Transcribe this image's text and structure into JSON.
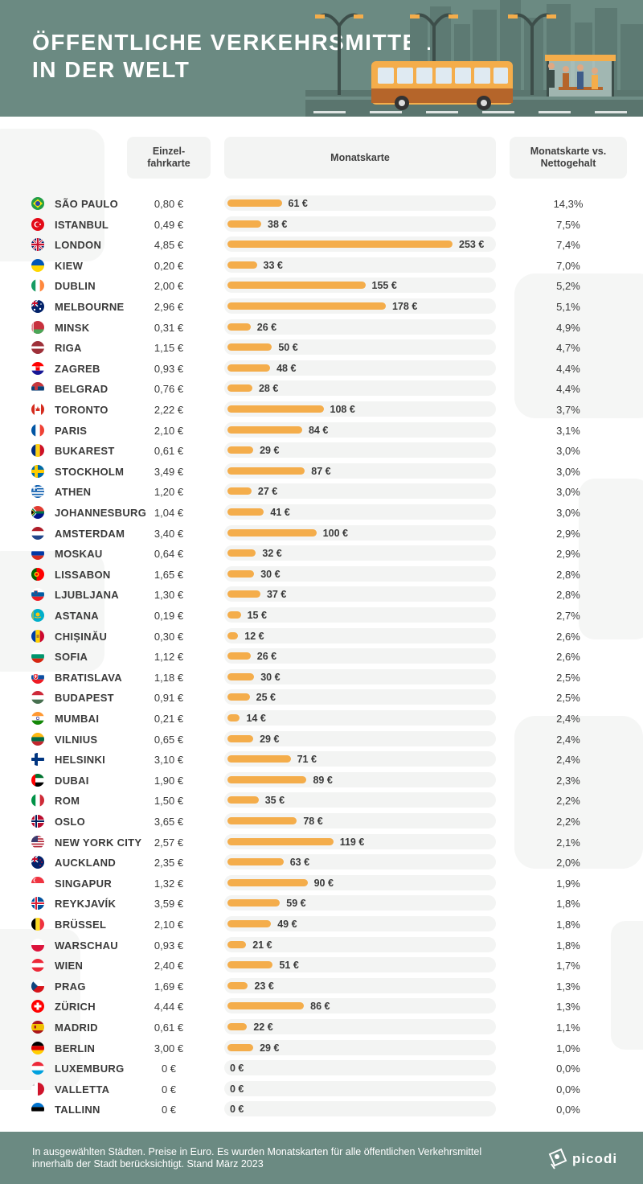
{
  "header": {
    "title_line1": "ÖFFENTLICHE VERKEHRSMITTEL",
    "title_line2": "IN DER WELT"
  },
  "columns": {
    "single": "Einzel- fahrkarte",
    "monthly": "Monatskarte",
    "ratio": "Monatskarte vs. Nettogehalt"
  },
  "footer": {
    "note": "In ausgewählten Städten. Preise in Euro. Es wurden Monatskarten für alle öffentlichen Verkehrsmittel innerhalb der Stadt berücksichtigt. Stand März 2023",
    "brand": "picodi"
  },
  "colors": {
    "header_bg": "#6b8a82",
    "bar": "#f4ad4b",
    "track": "#f3f4f3"
  },
  "chart_data": {
    "type": "bar",
    "orientation": "horizontal",
    "max_value": 253,
    "rows": [
      {
        "city": "SÃO PAULO",
        "flag": "br",
        "single": "0,80 €",
        "monthly": 61,
        "monthly_label": "61 €",
        "ratio": "14,3%"
      },
      {
        "city": "ISTANBUL",
        "flag": "tr",
        "single": "0,49 €",
        "monthly": 38,
        "monthly_label": "38 €",
        "ratio": "7,5%"
      },
      {
        "city": "LONDON",
        "flag": "gb",
        "single": "4,85 €",
        "monthly": 253,
        "monthly_label": "253 €",
        "ratio": "7,4%"
      },
      {
        "city": "KIEW",
        "flag": "ua",
        "single": "0,20 €",
        "monthly": 33,
        "monthly_label": "33 €",
        "ratio": "7,0%"
      },
      {
        "city": "DUBLIN",
        "flag": "ie",
        "single": "2,00 €",
        "monthly": 155,
        "monthly_label": "155 €",
        "ratio": "5,2%"
      },
      {
        "city": "MELBOURNE",
        "flag": "au",
        "single": "2,96 €",
        "monthly": 178,
        "monthly_label": "178 €",
        "ratio": "5,1%"
      },
      {
        "city": "MINSK",
        "flag": "by",
        "single": "0,31 €",
        "monthly": 26,
        "monthly_label": "26 €",
        "ratio": "4,9%"
      },
      {
        "city": "RIGA",
        "flag": "lv",
        "single": "1,15 €",
        "monthly": 50,
        "monthly_label": "50 €",
        "ratio": "4,7%"
      },
      {
        "city": "ZAGREB",
        "flag": "hr",
        "single": "0,93 €",
        "monthly": 48,
        "monthly_label": "48 €",
        "ratio": "4,4%"
      },
      {
        "city": "BELGRAD",
        "flag": "rs",
        "single": "0,76 €",
        "monthly": 28,
        "monthly_label": "28 €",
        "ratio": "4,4%"
      },
      {
        "city": "TORONTO",
        "flag": "ca",
        "single": "2,22 €",
        "monthly": 108,
        "monthly_label": "108 €",
        "ratio": "3,7%"
      },
      {
        "city": "PARIS",
        "flag": "fr",
        "single": "2,10 €",
        "monthly": 84,
        "monthly_label": "84 €",
        "ratio": "3,1%"
      },
      {
        "city": "BUKAREST",
        "flag": "ro",
        "single": "0,61 €",
        "monthly": 29,
        "monthly_label": "29 €",
        "ratio": "3,0%"
      },
      {
        "city": "STOCKHOLM",
        "flag": "se",
        "single": "3,49 €",
        "monthly": 87,
        "monthly_label": "87 €",
        "ratio": "3,0%"
      },
      {
        "city": "ATHEN",
        "flag": "gr",
        "single": "1,20 €",
        "monthly": 27,
        "monthly_label": "27 €",
        "ratio": "3,0%"
      },
      {
        "city": "JOHANNESBURG",
        "flag": "za",
        "single": "1,04 €",
        "monthly": 41,
        "monthly_label": "41 €",
        "ratio": "3,0%"
      },
      {
        "city": "AMSTERDAM",
        "flag": "nl",
        "single": "3,40 €",
        "monthly": 100,
        "monthly_label": "100 €",
        "ratio": "2,9%"
      },
      {
        "city": "MOSKAU",
        "flag": "ru",
        "single": "0,64 €",
        "monthly": 32,
        "monthly_label": "32 €",
        "ratio": "2,9%"
      },
      {
        "city": "LISSABON",
        "flag": "pt",
        "single": "1,65 €",
        "monthly": 30,
        "monthly_label": "30 €",
        "ratio": "2,8%"
      },
      {
        "city": "LJUBLJANA",
        "flag": "si",
        "single": "1,30 €",
        "monthly": 37,
        "monthly_label": "37 €",
        "ratio": "2,8%"
      },
      {
        "city": "ASTANA",
        "flag": "kz",
        "single": "0,19 €",
        "monthly": 15,
        "monthly_label": "15 €",
        "ratio": "2,7%"
      },
      {
        "city": "CHIȘINĂU",
        "flag": "md",
        "single": "0,30 €",
        "monthly": 12,
        "monthly_label": "12 €",
        "ratio": "2,6%"
      },
      {
        "city": "SOFIA",
        "flag": "bg",
        "single": "1,12 €",
        "monthly": 26,
        "monthly_label": "26 €",
        "ratio": "2,6%"
      },
      {
        "city": "BRATISLAVA",
        "flag": "sk",
        "single": "1,18 €",
        "monthly": 30,
        "monthly_label": "30 €",
        "ratio": "2,5%"
      },
      {
        "city": "BUDAPEST",
        "flag": "hu",
        "single": "0,91 €",
        "monthly": 25,
        "monthly_label": "25 €",
        "ratio": "2,5%"
      },
      {
        "city": "MUMBAI",
        "flag": "in",
        "single": "0,21 €",
        "monthly": 14,
        "monthly_label": "14 €",
        "ratio": "2,4%"
      },
      {
        "city": "VILNIUS",
        "flag": "lt",
        "single": "0,65 €",
        "monthly": 29,
        "monthly_label": "29 €",
        "ratio": "2,4%"
      },
      {
        "city": "HELSINKI",
        "flag": "fi",
        "single": "3,10 €",
        "monthly": 71,
        "monthly_label": "71 €",
        "ratio": "2,4%"
      },
      {
        "city": "DUBAI",
        "flag": "ae",
        "single": "1,90 €",
        "monthly": 89,
        "monthly_label": "89 €",
        "ratio": "2,3%"
      },
      {
        "city": "ROM",
        "flag": "it",
        "single": "1,50 €",
        "monthly": 35,
        "monthly_label": "35 €",
        "ratio": "2,2%"
      },
      {
        "city": "OSLO",
        "flag": "no",
        "single": "3,65 €",
        "monthly": 78,
        "monthly_label": "78 €",
        "ratio": "2,2%"
      },
      {
        "city": "NEW YORK CITY",
        "flag": "us",
        "single": "2,57 €",
        "monthly": 119,
        "monthly_label": "119 €",
        "ratio": "2,1%"
      },
      {
        "city": "AUCKLAND",
        "flag": "nz",
        "single": "2,35 €",
        "monthly": 63,
        "monthly_label": "63 €",
        "ratio": "2,0%"
      },
      {
        "city": "SINGAPUR",
        "flag": "sg",
        "single": "1,32 €",
        "monthly": 90,
        "monthly_label": "90 €",
        "ratio": "1,9%"
      },
      {
        "city": "REYKJAVÍK",
        "flag": "is",
        "single": "3,59 €",
        "monthly": 59,
        "monthly_label": "59 €",
        "ratio": "1,8%"
      },
      {
        "city": "BRÜSSEL",
        "flag": "be",
        "single": "2,10 €",
        "monthly": 49,
        "monthly_label": "49 €",
        "ratio": "1,8%"
      },
      {
        "city": "WARSCHAU",
        "flag": "pl",
        "single": "0,93 €",
        "monthly": 21,
        "monthly_label": "21 €",
        "ratio": "1,8%"
      },
      {
        "city": "WIEN",
        "flag": "at",
        "single": "2,40 €",
        "monthly": 51,
        "monthly_label": "51 €",
        "ratio": "1,7%"
      },
      {
        "city": "PRAG",
        "flag": "cz",
        "single": "1,69 €",
        "monthly": 23,
        "monthly_label": "23 €",
        "ratio": "1,3%"
      },
      {
        "city": "ZÜRICH",
        "flag": "ch",
        "single": "4,44 €",
        "monthly": 86,
        "monthly_label": "86 €",
        "ratio": "1,3%"
      },
      {
        "city": "MADRID",
        "flag": "es",
        "single": "0,61 €",
        "monthly": 22,
        "monthly_label": "22 €",
        "ratio": "1,1%"
      },
      {
        "city": "BERLIN",
        "flag": "de",
        "single": "3,00 €",
        "monthly": 29,
        "monthly_label": "29 €",
        "ratio": "1,0%"
      },
      {
        "city": "LUXEMBURG",
        "flag": "lu",
        "single": "0 €",
        "monthly": 0,
        "monthly_label": "0 €",
        "ratio": "0,0%"
      },
      {
        "city": "VALLETTA",
        "flag": "mt",
        "single": "0 €",
        "monthly": 0,
        "monthly_label": "0 €",
        "ratio": "0,0%"
      },
      {
        "city": "TALLINN",
        "flag": "ee",
        "single": "0 €",
        "monthly": 0,
        "monthly_label": "0 €",
        "ratio": "0,0%"
      }
    ]
  }
}
